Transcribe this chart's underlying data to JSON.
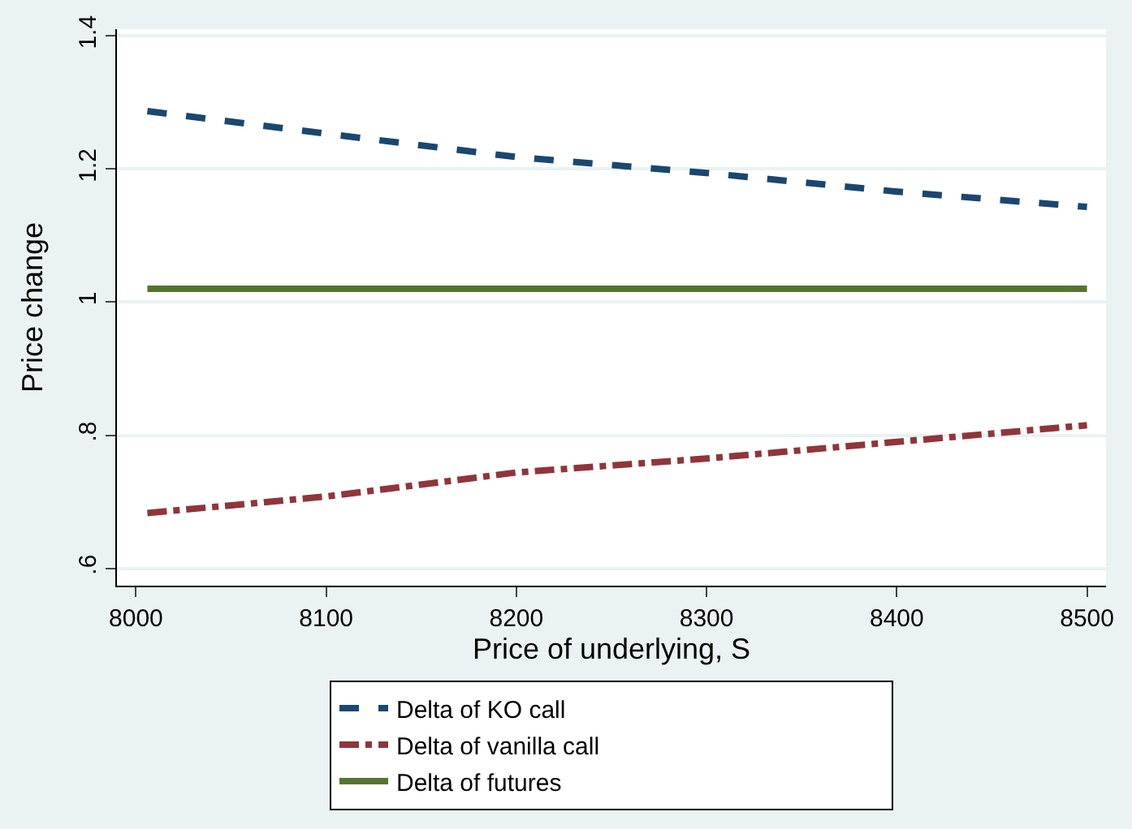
{
  "chart_data": {
    "type": "line",
    "xlabel": "Price of underlying, S",
    "ylabel": "Price change",
    "series": [
      {
        "name": "Delta of KO call",
        "color": "#1a476f",
        "line_style": "dashed",
        "x": [
          8006,
          8100,
          8200,
          8300,
          8400,
          8500
        ],
        "values": [
          1.287,
          1.253,
          1.218,
          1.194,
          1.166,
          1.143
        ]
      },
      {
        "name": "Delta of vanilla call",
        "color": "#90353b",
        "line_style": "dashdot",
        "x": [
          8006,
          8100,
          8200,
          8300,
          8400,
          8500
        ],
        "values": [
          0.683,
          0.708,
          0.744,
          0.765,
          0.79,
          0.815
        ]
      },
      {
        "name": "Delta of futures",
        "color": "#55752f",
        "line_style": "solid",
        "x": [
          8006,
          8500
        ],
        "values": [
          1.02,
          1.02
        ]
      }
    ],
    "xlim": [
      7990,
      8510
    ],
    "xticks": [
      8000,
      8100,
      8200,
      8300,
      8400,
      8500
    ],
    "ylim": [
      0.574,
      1.41
    ],
    "yticks": [
      {
        "value": 0.6,
        "label": ".6"
      },
      {
        "value": 0.8,
        "label": ".8"
      },
      1,
      1.2,
      1.4
    ],
    "grid": "y",
    "legend": "bottom",
    "marker": "none"
  }
}
